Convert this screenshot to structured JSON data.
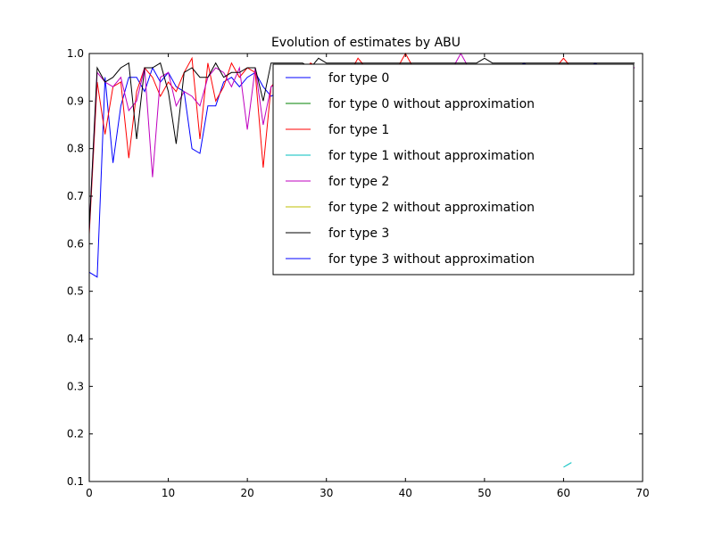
{
  "chart_data": {
    "type": "line",
    "title": "Evolution of estimates by ABU",
    "xlabel": "",
    "ylabel": "",
    "xlim": [
      0,
      70
    ],
    "ylim": [
      0.1,
      1.0
    ],
    "xticks": [
      0,
      10,
      20,
      30,
      40,
      50,
      60,
      70
    ],
    "yticks": [
      0.1,
      0.2,
      0.3,
      0.4,
      0.5,
      0.6,
      0.7,
      0.8,
      0.9,
      1.0
    ],
    "xtick_labels": [
      "0",
      "10",
      "20",
      "30",
      "40",
      "50",
      "60",
      "70"
    ],
    "ytick_labels": [
      "0.1",
      "0.2",
      "0.3",
      "0.4",
      "0.5",
      "0.6",
      "0.7",
      "0.8",
      "0.9",
      "1.0"
    ],
    "grid": false,
    "legend_position": "top-right",
    "series": [
      {
        "name": "for type 0",
        "color": "#0000ff",
        "x": [
          0,
          1,
          2,
          3,
          4,
          5,
          6,
          7,
          8,
          9,
          10,
          11,
          12,
          13,
          14,
          15,
          16,
          17,
          18,
          19,
          20,
          21,
          22,
          23,
          24,
          25,
          26,
          27,
          28,
          29,
          30,
          31,
          32,
          33,
          34,
          35,
          36,
          37,
          38,
          39,
          40,
          41,
          42,
          43,
          44,
          45,
          46,
          47,
          48,
          49,
          50,
          51,
          52,
          53,
          54,
          55,
          56,
          57,
          58,
          59,
          60,
          61,
          62,
          63,
          64,
          65,
          66,
          67,
          68,
          69
        ],
        "y": [
          0.54,
          0.53,
          0.95,
          0.77,
          0.89,
          0.95,
          0.95,
          0.92,
          0.97,
          0.94,
          0.96,
          0.93,
          0.92,
          0.8,
          0.79,
          0.89,
          0.89,
          0.94,
          0.95,
          0.93,
          0.95,
          0.96,
          0.93,
          0.91,
          0.92,
          0.94,
          0.95,
          0.96,
          0.96,
          0.97,
          0.96,
          0.96,
          0.97,
          0.97,
          0.96,
          0.97,
          0.96,
          0.97,
          0.97,
          0.97,
          0.96,
          0.97,
          0.97,
          0.96,
          0.97,
          0.97,
          0.96,
          0.97,
          0.97,
          0.97,
          0.97,
          0.97,
          0.97,
          0.97,
          0.97,
          0.98,
          0.97,
          0.97,
          0.97,
          0.97,
          0.97,
          0.97,
          0.97,
          0.97,
          0.98,
          0.97,
          0.97,
          0.97,
          0.97,
          0.97
        ]
      },
      {
        "name": "for type 0 without approximation",
        "color": "#008000",
        "x": [],
        "y": []
      },
      {
        "name": "for type 1",
        "color": "#ff0000",
        "x": [
          0,
          1,
          2,
          3,
          4,
          5,
          6,
          7,
          8,
          9,
          10,
          11,
          12,
          13,
          14,
          15,
          16,
          17,
          18,
          19,
          20,
          21,
          22,
          23,
          24,
          25,
          26,
          27,
          28,
          29,
          30,
          31,
          32,
          33,
          34,
          35,
          36,
          37,
          38,
          39,
          40,
          41,
          42,
          43,
          44,
          45,
          46,
          47,
          48,
          49,
          50,
          51,
          52,
          53,
          54,
          55,
          56,
          57,
          58,
          59,
          60,
          61,
          62,
          63,
          64,
          65,
          66,
          67,
          68,
          69
        ],
        "y": [
          0.62,
          0.94,
          0.83,
          0.93,
          0.94,
          0.78,
          0.92,
          0.97,
          0.95,
          0.91,
          0.94,
          0.92,
          0.96,
          0.99,
          0.82,
          0.98,
          0.9,
          0.93,
          0.98,
          0.95,
          0.97,
          0.96,
          0.76,
          0.93,
          0.95,
          0.96,
          0.94,
          0.96,
          0.98,
          0.97,
          0.96,
          0.97,
          0.97,
          0.96,
          0.99,
          0.97,
          0.96,
          0.97,
          0.97,
          0.97,
          1.0,
          0.97,
          0.96,
          0.97,
          0.97,
          0.97,
          0.96,
          0.97,
          0.97,
          0.97,
          0.97,
          0.97,
          0.97,
          0.97,
          0.97,
          0.97,
          0.97,
          0.97,
          0.97,
          0.97,
          0.99,
          0.97,
          0.97,
          0.97,
          0.97,
          0.97,
          0.97,
          0.97,
          0.97,
          0.97
        ]
      },
      {
        "name": "for type 1 without approximation",
        "color": "#00bfbf",
        "x": [
          60,
          61
        ],
        "y": [
          0.13,
          0.14
        ]
      },
      {
        "name": "for type 2",
        "color": "#bf00bf",
        "x": [
          0,
          1,
          2,
          3,
          4,
          5,
          6,
          7,
          8,
          9,
          10,
          11,
          12,
          13,
          14,
          15,
          16,
          17,
          18,
          19,
          20,
          21,
          22,
          23,
          24,
          25,
          26,
          27,
          28,
          29,
          30,
          31,
          32,
          33,
          34,
          35,
          36,
          37,
          38,
          39,
          40,
          41,
          42,
          43,
          44,
          45,
          46,
          47,
          48,
          49,
          50,
          51,
          52,
          53,
          54,
          55,
          56,
          57,
          58,
          59,
          60,
          61,
          62,
          63,
          64,
          65,
          66,
          67,
          68,
          69
        ],
        "y": [
          0.63,
          0.96,
          0.94,
          0.93,
          0.95,
          0.88,
          0.9,
          0.97,
          0.74,
          0.95,
          0.96,
          0.89,
          0.92,
          0.91,
          0.89,
          0.95,
          0.97,
          0.96,
          0.93,
          0.97,
          0.84,
          0.97,
          0.85,
          0.93,
          0.94,
          0.95,
          0.96,
          0.96,
          0.96,
          0.97,
          0.96,
          0.97,
          0.96,
          0.97,
          0.97,
          0.97,
          0.96,
          0.97,
          0.97,
          0.97,
          0.97,
          0.97,
          0.97,
          0.97,
          0.97,
          0.97,
          0.97,
          1.0,
          0.97,
          0.97,
          0.97,
          0.97,
          0.97,
          0.97,
          0.97,
          0.97,
          0.97,
          0.97,
          0.97,
          0.97,
          0.97,
          0.97,
          0.97,
          0.97,
          0.97,
          0.97,
          0.97,
          0.97,
          0.97,
          0.97
        ]
      },
      {
        "name": "for type 2 without approximation",
        "color": "#bfbf00",
        "x": [],
        "y": []
      },
      {
        "name": "for type 3",
        "color": "#000000",
        "x": [
          0,
          1,
          2,
          3,
          4,
          5,
          6,
          7,
          8,
          9,
          10,
          11,
          12,
          13,
          14,
          15,
          16,
          17,
          18,
          19,
          20,
          21,
          22,
          23,
          24,
          25,
          26,
          27,
          28,
          29,
          30,
          31,
          32,
          33,
          34,
          35,
          36,
          37,
          38,
          39,
          40,
          41,
          42,
          43,
          44,
          45,
          46,
          47,
          48,
          49,
          50,
          51,
          52,
          53,
          54,
          55,
          56,
          57,
          58,
          59,
          60,
          61,
          62,
          63,
          64,
          65,
          66,
          67,
          68,
          69
        ],
        "y": [
          0.63,
          0.97,
          0.94,
          0.95,
          0.97,
          0.98,
          0.82,
          0.97,
          0.97,
          0.98,
          0.92,
          0.81,
          0.96,
          0.97,
          0.95,
          0.95,
          0.98,
          0.95,
          0.96,
          0.96,
          0.97,
          0.97,
          0.9,
          0.98,
          0.98,
          0.98,
          0.98,
          0.98,
          0.97,
          0.99,
          0.98,
          0.98,
          0.98,
          0.98,
          0.98,
          0.98,
          0.98,
          0.98,
          0.98,
          0.98,
          0.98,
          0.98,
          0.98,
          0.98,
          0.98,
          0.98,
          0.98,
          0.98,
          0.98,
          0.98,
          0.99,
          0.98,
          0.98,
          0.98,
          0.98,
          0.98,
          0.98,
          0.98,
          0.98,
          0.98,
          0.98,
          0.98,
          0.98,
          0.98,
          0.98,
          0.98,
          0.98,
          0.98,
          0.98,
          0.98
        ]
      },
      {
        "name": "for type 3 without approximation",
        "color": "#0000ff",
        "x": [],
        "y": []
      }
    ]
  }
}
